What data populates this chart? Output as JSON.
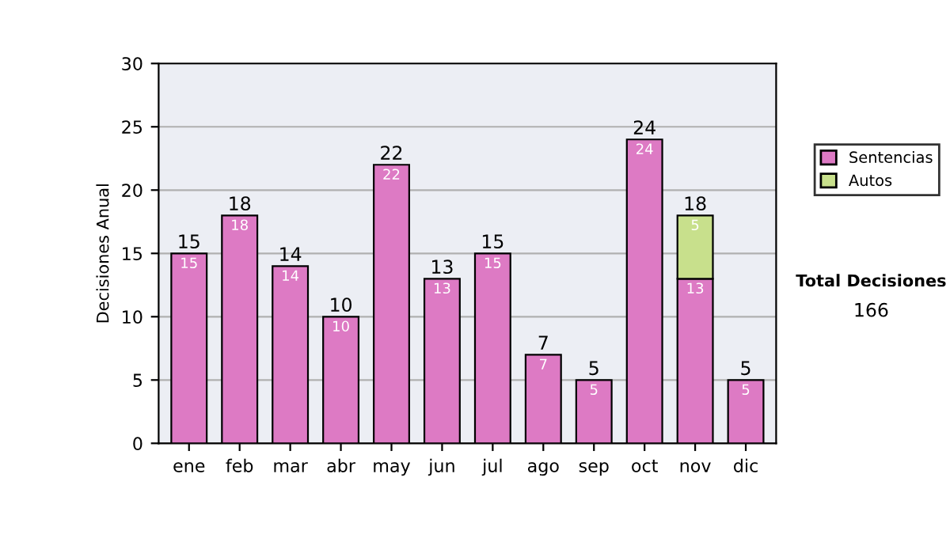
{
  "chart_data": {
    "type": "bar",
    "ylabel": "Decisiones Anual",
    "categories": [
      "ene",
      "feb",
      "mar",
      "abr",
      "may",
      "jun",
      "jul",
      "ago",
      "sep",
      "oct",
      "nov",
      "dic"
    ],
    "stacked": true,
    "series": [
      {
        "name": "Sentencias",
        "color": "#dd7ac4",
        "values": [
          15,
          18,
          14,
          10,
          22,
          13,
          15,
          7,
          5,
          24,
          13,
          5
        ]
      },
      {
        "name": "Autos",
        "color": "#c8e08c",
        "values": [
          null,
          null,
          null,
          null,
          null,
          null,
          null,
          null,
          null,
          null,
          5,
          null
        ]
      }
    ],
    "totals": [
      "15",
      "18",
      "14",
      "10",
      "22",
      "13",
      "15",
      "7",
      "5",
      "24",
      "18",
      "5"
    ],
    "data_labels": true,
    "ylim": [
      0,
      30
    ],
    "yticks": [
      0,
      5,
      10,
      15,
      20,
      25,
      30
    ],
    "grid": "y",
    "legend": "right",
    "annotations": [
      "Total Decisiones",
      "166"
    ]
  }
}
